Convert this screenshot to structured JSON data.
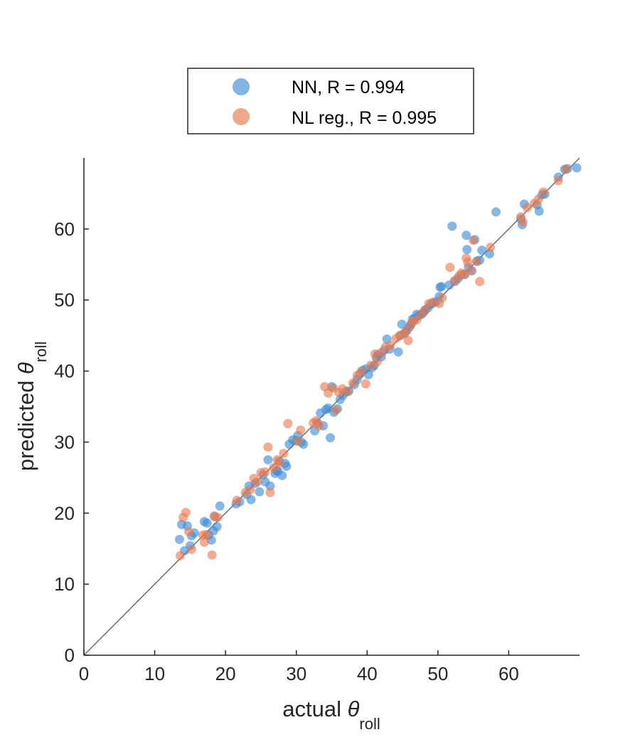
{
  "chart_data": {
    "type": "scatter",
    "xlabel": "actual θroll",
    "ylabel": "predicted θroll",
    "xlabel_parts": {
      "main": "actual ",
      "symbol": "θ",
      "sub": "roll"
    },
    "ylabel_parts": {
      "main": "predicted ",
      "symbol": "θ",
      "sub": "roll"
    },
    "xlim": [
      0,
      70
    ],
    "ylim": [
      0,
      70
    ],
    "x_ticks": [
      0,
      10,
      20,
      30,
      40,
      50,
      60
    ],
    "y_ticks": [
      0,
      10,
      20,
      30,
      40,
      50,
      60
    ],
    "x_tick_labels": [
      "0",
      "10",
      "20",
      "30",
      "40",
      "50",
      "60"
    ],
    "y_tick_labels": [
      "0",
      "10",
      "20",
      "30",
      "40",
      "50",
      "60"
    ],
    "grid": false,
    "legend_position": "top-center",
    "reference_line": {
      "from": [
        0,
        0
      ],
      "to": [
        70,
        70
      ],
      "color": "#6e6e6e"
    },
    "series": [
      {
        "name": "NN, R = 0.994",
        "color": "#3d8bd4",
        "points": [
          [
            13.5,
            16.3
          ],
          [
            13.8,
            18.4
          ],
          [
            14.2,
            14.7
          ],
          [
            14.6,
            18.2
          ],
          [
            15.0,
            15.4
          ],
          [
            15.2,
            16.8
          ],
          [
            15.6,
            17.2
          ],
          [
            17.0,
            18.8
          ],
          [
            17.4,
            18.6
          ],
          [
            17.6,
            16.9
          ],
          [
            18.0,
            16.2
          ],
          [
            18.3,
            17.5
          ],
          [
            18.5,
            19.5
          ],
          [
            18.8,
            18.1
          ],
          [
            19.2,
            21.0
          ],
          [
            21.5,
            21.3
          ],
          [
            22.0,
            21.6
          ],
          [
            23.0,
            22.6
          ],
          [
            23.3,
            23.8
          ],
          [
            23.6,
            21.9
          ],
          [
            24.2,
            24.2
          ],
          [
            24.8,
            23.0
          ],
          [
            25.3,
            25.4
          ],
          [
            25.6,
            24.4
          ],
          [
            26.0,
            27.5
          ],
          [
            26.3,
            23.8
          ],
          [
            27.0,
            25.6
          ],
          [
            27.2,
            26.0
          ],
          [
            27.4,
            25.9
          ],
          [
            27.6,
            27.3
          ],
          [
            28.0,
            25.3
          ],
          [
            28.4,
            27.0
          ],
          [
            28.6,
            26.6
          ],
          [
            29.0,
            29.7
          ],
          [
            29.5,
            30.3
          ],
          [
            30.0,
            30.2
          ],
          [
            30.2,
            30.9
          ],
          [
            30.7,
            30.0
          ],
          [
            31.0,
            29.7
          ],
          [
            32.6,
            31.6
          ],
          [
            33.0,
            32.7
          ],
          [
            33.4,
            34.1
          ],
          [
            33.8,
            32.3
          ],
          [
            34.2,
            34.6
          ],
          [
            34.5,
            34.8
          ],
          [
            34.8,
            30.6
          ],
          [
            35.0,
            37.8
          ],
          [
            35.3,
            34.2
          ],
          [
            35.8,
            34.7
          ],
          [
            36.2,
            36.0
          ],
          [
            36.6,
            36.6
          ],
          [
            37.0,
            37.1
          ],
          [
            37.4,
            37.2
          ],
          [
            38.2,
            38.1
          ],
          [
            38.6,
            38.8
          ],
          [
            39.0,
            39.6
          ],
          [
            39.4,
            40.1
          ],
          [
            39.8,
            40.3
          ],
          [
            40.2,
            39.5
          ],
          [
            40.7,
            40.5
          ],
          [
            41.0,
            40.8
          ],
          [
            41.3,
            41.9
          ],
          [
            41.5,
            42.3
          ],
          [
            42.0,
            42.0
          ],
          [
            42.4,
            42.9
          ],
          [
            42.8,
            44.5
          ],
          [
            43.2,
            43.1
          ],
          [
            44.4,
            42.7
          ],
          [
            44.7,
            45.0
          ],
          [
            44.9,
            46.6
          ],
          [
            45.3,
            45.3
          ],
          [
            45.6,
            45.7
          ],
          [
            46.0,
            46.2
          ],
          [
            46.2,
            46.6
          ],
          [
            46.4,
            47.3
          ],
          [
            46.7,
            47.4
          ],
          [
            47.0,
            48.0
          ],
          [
            47.3,
            47.8
          ],
          [
            47.7,
            48.0
          ],
          [
            48.0,
            48.3
          ],
          [
            48.2,
            48.6
          ],
          [
            48.6,
            48.9
          ],
          [
            49.0,
            49.4
          ],
          [
            49.4,
            49.6
          ],
          [
            49.8,
            49.8
          ],
          [
            50.2,
            50.5
          ],
          [
            50.3,
            51.8
          ],
          [
            50.5,
            51.9
          ],
          [
            51.6,
            52.1
          ],
          [
            52.0,
            60.4
          ],
          [
            52.4,
            52.6
          ],
          [
            52.8,
            53.0
          ],
          [
            53.3,
            53.5
          ],
          [
            53.8,
            53.6
          ],
          [
            54.0,
            59.1
          ],
          [
            54.1,
            57.1
          ],
          [
            54.3,
            54.6
          ],
          [
            54.8,
            54.1
          ],
          [
            55.2,
            58.5
          ],
          [
            55.5,
            55.5
          ],
          [
            55.9,
            55.6
          ],
          [
            56.2,
            57.0
          ],
          [
            57.3,
            56.5
          ],
          [
            58.2,
            62.4
          ],
          [
            61.7,
            61.4
          ],
          [
            61.9,
            60.6
          ],
          [
            62.2,
            63.5
          ],
          [
            64.0,
            63.4
          ],
          [
            64.3,
            62.5
          ],
          [
            64.7,
            64.8
          ],
          [
            65.1,
            64.9
          ],
          [
            67.0,
            67.3
          ],
          [
            67.9,
            68.4
          ],
          [
            68.3,
            68.5
          ],
          [
            69.6,
            68.6
          ]
        ]
      },
      {
        "name": "NL reg., R = 0.995",
        "color": "#e8794f",
        "points": [
          [
            13.6,
            14.0
          ],
          [
            14.0,
            19.4
          ],
          [
            14.4,
            20.1
          ],
          [
            14.8,
            17.4
          ],
          [
            15.2,
            14.9
          ],
          [
            16.8,
            16.9
          ],
          [
            17.0,
            15.9
          ],
          [
            17.3,
            17.0
          ],
          [
            18.1,
            14.1
          ],
          [
            18.4,
            19.6
          ],
          [
            18.9,
            19.4
          ],
          [
            21.6,
            21.8
          ],
          [
            22.8,
            22.9
          ],
          [
            23.5,
            23.3
          ],
          [
            24.0,
            24.9
          ],
          [
            24.5,
            24.4
          ],
          [
            25.0,
            25.7
          ],
          [
            25.6,
            25.8
          ],
          [
            26.0,
            29.3
          ],
          [
            26.3,
            22.9
          ],
          [
            26.8,
            26.4
          ],
          [
            27.3,
            27.5
          ],
          [
            27.6,
            27.0
          ],
          [
            28.2,
            28.4
          ],
          [
            28.8,
            32.6
          ],
          [
            30.2,
            30.1
          ],
          [
            30.6,
            31.7
          ],
          [
            32.4,
            32.7
          ],
          [
            32.8,
            33.0
          ],
          [
            33.2,
            32.3
          ],
          [
            34.0,
            37.8
          ],
          [
            34.5,
            36.9
          ],
          [
            35.2,
            37.6
          ],
          [
            35.6,
            34.5
          ],
          [
            36.0,
            37.0
          ],
          [
            36.5,
            37.5
          ],
          [
            37.3,
            37.1
          ],
          [
            38.0,
            38.3
          ],
          [
            38.6,
            39.4
          ],
          [
            39.2,
            40.0
          ],
          [
            39.8,
            38.2
          ],
          [
            40.5,
            40.8
          ],
          [
            41.1,
            42.4
          ],
          [
            41.4,
            41.3
          ],
          [
            42.0,
            42.6
          ],
          [
            42.6,
            43.4
          ],
          [
            43.3,
            43.6
          ],
          [
            44.1,
            44.6
          ],
          [
            44.6,
            45.0
          ],
          [
            45.2,
            45.3
          ],
          [
            45.6,
            45.7
          ],
          [
            45.8,
            44.3
          ],
          [
            46.2,
            46.6
          ],
          [
            46.5,
            47.0
          ],
          [
            47.0,
            47.2
          ],
          [
            47.6,
            48.0
          ],
          [
            48.2,
            48.6
          ],
          [
            48.7,
            49.5
          ],
          [
            49.3,
            49.7
          ],
          [
            50.2,
            49.5
          ],
          [
            50.6,
            50.3
          ],
          [
            51.7,
            54.6
          ],
          [
            52.3,
            52.7
          ],
          [
            52.9,
            53.3
          ],
          [
            53.3,
            53.8
          ],
          [
            53.7,
            53.6
          ],
          [
            54.0,
            55.9
          ],
          [
            54.2,
            55.3
          ],
          [
            54.6,
            54.2
          ],
          [
            55.0,
            58.4
          ],
          [
            55.5,
            55.4
          ],
          [
            55.9,
            52.6
          ],
          [
            57.4,
            57.4
          ],
          [
            61.7,
            61.7
          ],
          [
            62.0,
            61.0
          ],
          [
            62.6,
            63.0
          ],
          [
            63.6,
            63.6
          ],
          [
            64.2,
            64.2
          ],
          [
            64.9,
            65.2
          ],
          [
            67.0,
            66.8
          ],
          [
            68.1,
            68.4
          ]
        ]
      }
    ]
  }
}
